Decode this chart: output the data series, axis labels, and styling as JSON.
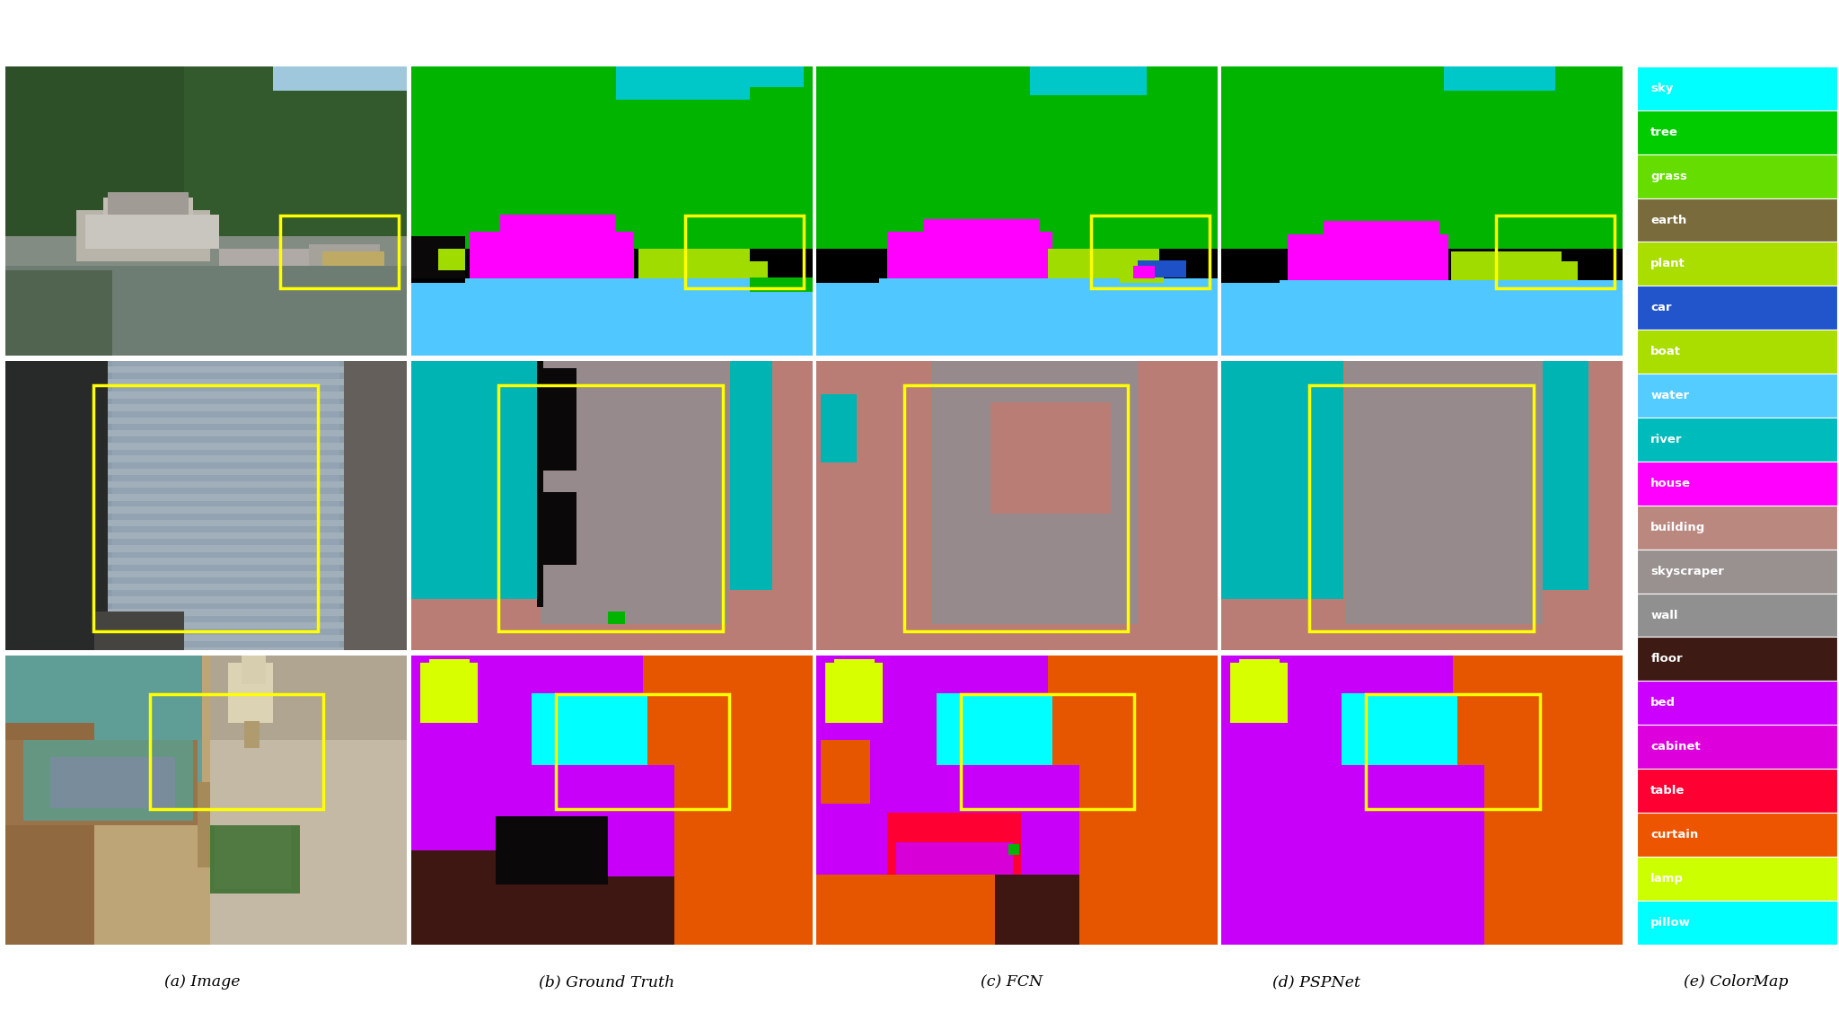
{
  "colormap_labels": [
    "sky",
    "tree",
    "grass",
    "earth",
    "plant",
    "car",
    "boat",
    "water",
    "river",
    "house",
    "building",
    "skyscraper",
    "wall",
    "floor",
    "bed",
    "cabinet",
    "table",
    "curtain",
    "lamp",
    "pillow"
  ],
  "colormap_colors_hex": [
    "#00FFFF",
    "#00CC00",
    "#66DD00",
    "#7A6B3C",
    "#AADD00",
    "#2255CC",
    "#AADD00",
    "#55CCFF",
    "#00BBBB",
    "#FF00FF",
    "#BB8880",
    "#999090",
    "#909090",
    "#3E1A14",
    "#CC00FF",
    "#DD00DD",
    "#FF0033",
    "#EE5500",
    "#CCFF00",
    "#00FFFF"
  ],
  "captions": [
    "(a) Image",
    "(b) Ground Truth",
    "(c) FCN",
    "(d) PSPNet",
    "(e) ColorMap"
  ],
  "border_color": "yellow",
  "border_linewidth": 2.5,
  "row1_boxes": {
    "orig": [
      310,
      120,
      130,
      100
    ],
    "gt": [
      310,
      120,
      130,
      100
    ],
    "fcn": [
      310,
      120,
      130,
      100
    ],
    "psp": [
      310,
      120,
      130,
      100
    ]
  },
  "row2_boxes": {
    "orig": [
      100,
      30,
      250,
      290
    ],
    "gt": [
      100,
      30,
      250,
      290
    ],
    "fcn": [
      100,
      30,
      250,
      290
    ],
    "psp": [
      100,
      30,
      250,
      290
    ]
  },
  "row3_boxes": {
    "orig": [
      165,
      50,
      190,
      130
    ],
    "gt": [
      165,
      50,
      190,
      130
    ],
    "fcn": [
      165,
      50,
      190,
      130
    ],
    "psp": [
      165,
      50,
      190,
      130
    ]
  },
  "sky_color": [
    0,
    200,
    200
  ],
  "tree_color": [
    0,
    180,
    0
  ],
  "grass_color": [
    100,
    210,
    0
  ],
  "plant_color": [
    160,
    220,
    0
  ],
  "car_color": [
    30,
    80,
    200
  ],
  "house_color": [
    255,
    0,
    255
  ],
  "water_color": [
    80,
    200,
    255
  ],
  "river_color": [
    0,
    180,
    180
  ],
  "building_color": [
    185,
    125,
    118
  ],
  "skyscraper_color": [
    150,
    138,
    140
  ],
  "wall_color": [
    140,
    138,
    138
  ],
  "floor_color": [
    62,
    22,
    18
  ],
  "bed_color": [
    200,
    0,
    250
  ],
  "cabinet_color": [
    215,
    0,
    215
  ],
  "table_color": [
    255,
    0,
    50
  ],
  "curtain_color": [
    230,
    85,
    0
  ],
  "lamp_color": [
    215,
    255,
    0
  ],
  "pillow_color": [
    0,
    255,
    255
  ],
  "black_color": [
    10,
    8,
    8
  ]
}
